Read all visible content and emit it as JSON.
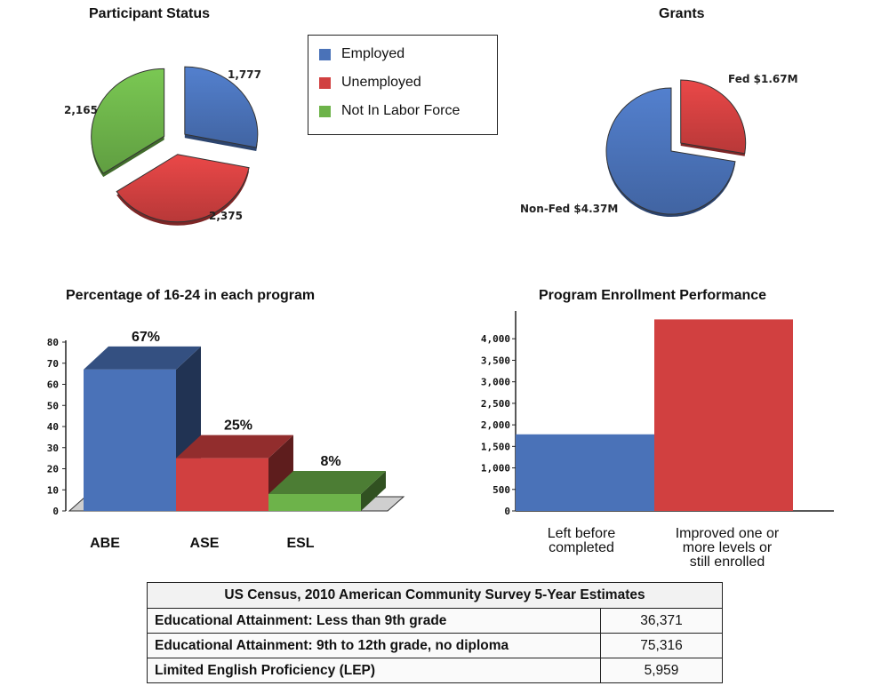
{
  "charts": {
    "participant_status": {
      "title": "Participant Status"
    },
    "grants": {
      "title": "Grants"
    },
    "pct_16_24": {
      "title": "Percentage of 16-24 in each program"
    },
    "enrollment": {
      "title": "Program Enrollment Performance"
    }
  },
  "legend": [
    {
      "label": "Employed",
      "color": "#4a72b8"
    },
    {
      "label": "Unemployed",
      "color": "#d14040"
    },
    {
      "label": "Not In Labor Force",
      "color": "#6db34a"
    }
  ],
  "chart_data": [
    {
      "type": "pie",
      "title": "Participant Status",
      "labels": [
        "Employed",
        "Unemployed",
        "Not In Labor Force"
      ],
      "values": [
        1777,
        2375,
        2165
      ],
      "value_labels": [
        "1,777",
        "2,375",
        "2,165"
      ],
      "colors": [
        "#4a72b8",
        "#d14040",
        "#6db34a"
      ]
    },
    {
      "type": "pie",
      "title": "Grants",
      "labels": [
        "Fed",
        "Non-Fed"
      ],
      "values": [
        1.67,
        4.37
      ],
      "value_labels": [
        "Fed $1.67M",
        "Non-Fed $4.37M"
      ],
      "colors": [
        "#d14040",
        "#4a72b8"
      ]
    },
    {
      "type": "bar",
      "title": "Percentage of 16-24 in each program",
      "categories": [
        "ABE",
        "ASE",
        "ESL"
      ],
      "values": [
        67,
        25,
        8
      ],
      "value_labels": [
        "67%",
        "25%",
        "8%"
      ],
      "colors": [
        "#4a72b8",
        "#d14040",
        "#6db34a"
      ],
      "ylim": [
        0,
        80
      ],
      "yticks": [
        "0",
        "10",
        "20",
        "30",
        "40",
        "50",
        "60",
        "70",
        "80"
      ]
    },
    {
      "type": "bar",
      "title": "Program Enrollment Performance",
      "categories": [
        "Left before completed",
        "Improved one or more levels or still enrolled"
      ],
      "category_lines": [
        [
          "Left before",
          "completed"
        ],
        [
          "Improved one or",
          "more levels or",
          "still enrolled"
        ]
      ],
      "values": [
        1780,
        4450
      ],
      "colors": [
        "#4a72b8",
        "#d14040"
      ],
      "ylim": [
        0,
        4500
      ],
      "yticks": [
        "0",
        "500",
        "1,000",
        "1,500",
        "2,000",
        "2,500",
        "3,000",
        "3,500",
        "4,000"
      ]
    }
  ],
  "table": {
    "title": "US Census, 2010 American Community Survey 5-Year Estimates",
    "rows": [
      {
        "label": "Educational Attainment: Less than 9th grade",
        "value": "36,371"
      },
      {
        "label": "Educational Attainment: 9th to 12th grade, no diploma",
        "value": "75,316"
      },
      {
        "label": "Limited English Proficiency (LEP)",
        "value": "5,959"
      }
    ]
  }
}
